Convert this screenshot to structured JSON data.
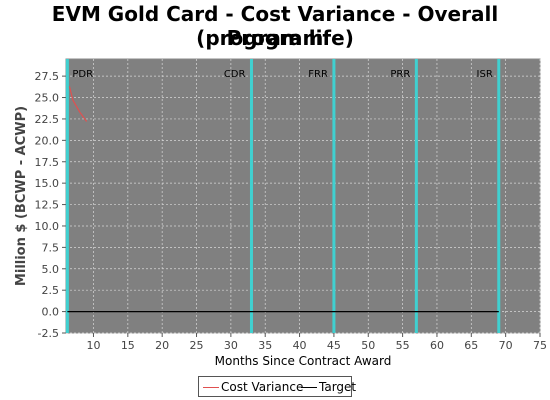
{
  "title_line1": "EVM Gold Card - Cost Variance - Overall Program",
  "title_line2": "(program life)",
  "chart_data": {
    "type": "line",
    "xlabel": "Months Since Contract Award",
    "ylabel": "Million $ (BCWP - ACWP)",
    "xlim": [
      6,
      75
    ],
    "ylim": [
      -2.5,
      29.5
    ],
    "x_ticks": [
      10,
      15,
      20,
      25,
      30,
      35,
      40,
      45,
      50,
      55,
      60,
      65,
      70,
      75
    ],
    "y_ticks": [
      -2.5,
      0.0,
      2.5,
      5.0,
      7.5,
      10.0,
      12.5,
      15.0,
      17.5,
      20.0,
      22.5,
      25.0,
      27.5
    ],
    "y_tick_labels": [
      "-2.5",
      "0.0",
      "2.5",
      "5.0",
      "7.5",
      "10.0",
      "12.5",
      "15.0",
      "17.5",
      "20.0",
      "22.5",
      "25.0",
      "27.5"
    ],
    "grid": true,
    "legend_position": "bottom",
    "background_color": "#808080",
    "milestones": [
      {
        "label": "PDR",
        "x": 6.2
      },
      {
        "label": "CDR",
        "x": 33
      },
      {
        "label": "FRR",
        "x": 45
      },
      {
        "label": "PRR",
        "x": 57
      },
      {
        "label": "ISR",
        "x": 69
      }
    ],
    "milestone_color": "#40d0d0",
    "series": [
      {
        "name": "Cost Variance",
        "color": "#e05050",
        "x": [
          6.5,
          7,
          8,
          9
        ],
        "y": [
          26.3,
          24.7,
          23.3,
          22.2
        ]
      },
      {
        "name": "Target",
        "color": "#000000",
        "x": [
          6.2,
          69
        ],
        "y": [
          0,
          0
        ]
      }
    ]
  }
}
